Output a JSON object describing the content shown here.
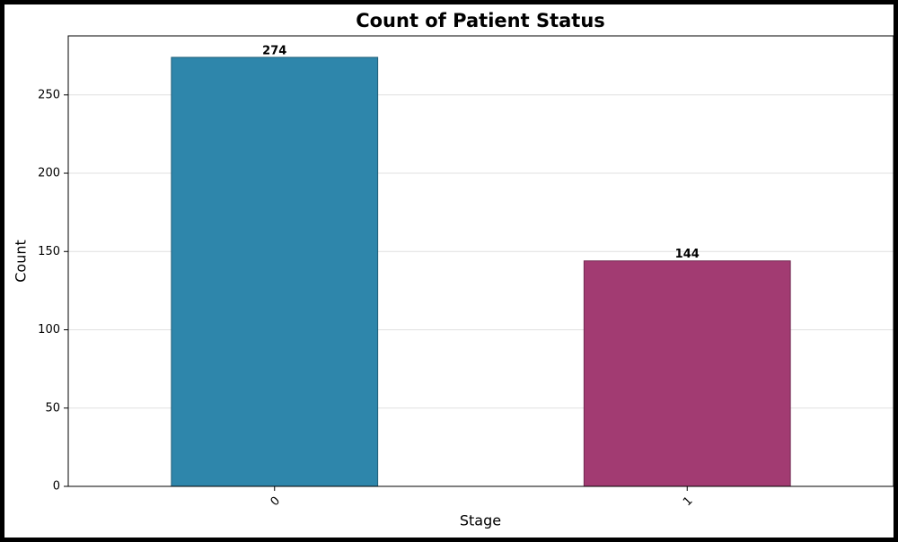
{
  "chart_data": {
    "type": "bar",
    "title": "Count of Patient Status",
    "x_label": "Stage",
    "y_label": "Count",
    "categories": [
      "0",
      "1"
    ],
    "values": [
      274,
      144
    ],
    "colors": [
      "#2e86ab",
      "#a23b72"
    ],
    "ylim": [
      0,
      287.7
    ],
    "yticks": [
      0,
      50,
      100,
      150,
      200,
      250
    ],
    "grid": true
  }
}
